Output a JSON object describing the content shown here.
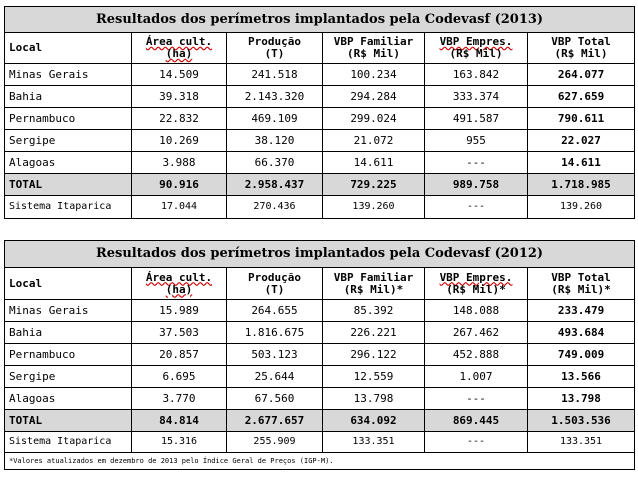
{
  "tables": [
    {
      "title": "Resultados dos perímetros implantados pela Codevasf (2013)",
      "headers": [
        {
          "l1": "Local",
          "l2": ""
        },
        {
          "l1": "Área cult.",
          "l2": "(ha)"
        },
        {
          "l1": "Produção",
          "l2": "(T)"
        },
        {
          "l1": "VBP Familiar",
          "l2": "(R$ Mil)"
        },
        {
          "l1": "VBP Empres.",
          "l2": "(R$ Mil)"
        },
        {
          "l1": "VBP Total",
          "l2": "(R$ Mil)"
        }
      ],
      "rows": [
        [
          "Minas Gerais",
          "14.509",
          "241.518",
          "100.234",
          "163.842",
          "264.077"
        ],
        [
          "Bahia",
          "39.318",
          "2.143.320",
          "294.284",
          "333.374",
          "627.659"
        ],
        [
          "Pernambuco",
          "22.832",
          "469.109",
          "299.024",
          "491.587",
          "790.611"
        ],
        [
          "Sergipe",
          "10.269",
          "38.120",
          "21.072",
          "955",
          "22.027"
        ],
        [
          "Alagoas",
          "3.988",
          "66.370",
          "14.611",
          "---",
          "14.611"
        ]
      ],
      "total": [
        "TOTAL",
        "90.916",
        "2.958.437",
        "729.225",
        "989.758",
        "1.718.985"
      ],
      "sistema": [
        "Sistema Itaparica",
        "17.044",
        "270.436",
        "139.260",
        "---",
        "139.260"
      ]
    },
    {
      "title": "Resultados dos perímetros implantados pela Codevasf (2012)",
      "headers": [
        {
          "l1": "Local",
          "l2": ""
        },
        {
          "l1": "Área cult.",
          "l2": "(ha)"
        },
        {
          "l1": "Produção",
          "l2": "(T)"
        },
        {
          "l1": "VBP Familiar",
          "l2": "(R$ Mil)*"
        },
        {
          "l1": "VBP Empres.",
          "l2": "(R$ Mil)*"
        },
        {
          "l1": "VBP Total",
          "l2": "(R$ Mil)*"
        }
      ],
      "rows": [
        [
          "Minas Gerais",
          "15.989",
          "264.655",
          "85.392",
          "148.088",
          "233.479"
        ],
        [
          "Bahia",
          "37.503",
          "1.816.675",
          "226.221",
          "267.462",
          "493.684"
        ],
        [
          "Pernambuco",
          "20.857",
          "503.123",
          "296.122",
          "452.888",
          "749.009"
        ],
        [
          "Sergipe",
          "6.695",
          "25.644",
          "12.559",
          "1.007",
          "13.566"
        ],
        [
          "Alagoas",
          "3.770",
          "67.560",
          "13.798",
          "---",
          "13.798"
        ]
      ],
      "total": [
        "TOTAL",
        "84.814",
        "2.677.657",
        "634.092",
        "869.445",
        "1.503.536"
      ],
      "sistema": [
        "Sistema Itaparica",
        "15.316",
        "255.909",
        "133.351",
        "---",
        "133.351"
      ],
      "footnote": "*Valores atualizados em dezembro de 2013 pelo Índice Geral de Preços (IGP-M)."
    }
  ]
}
